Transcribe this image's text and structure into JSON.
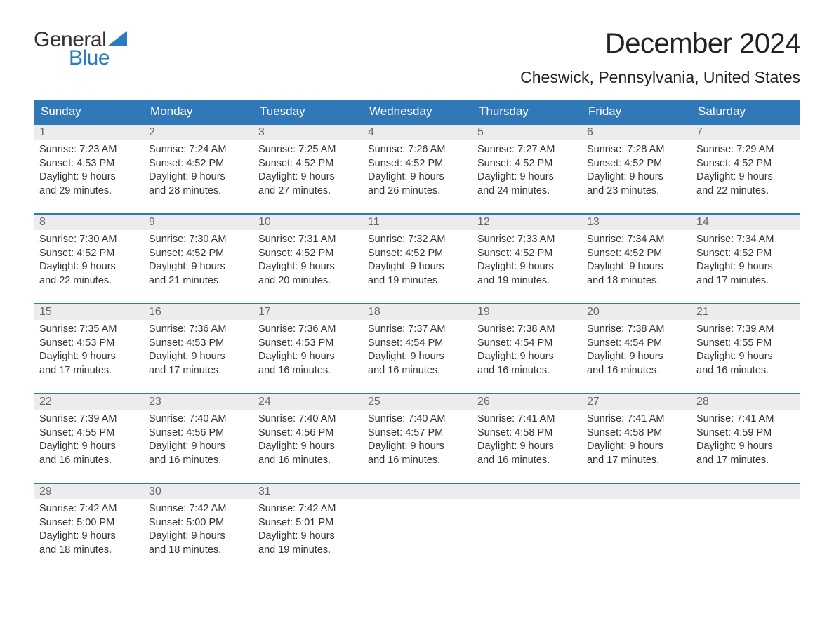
{
  "logo": {
    "line1": "General",
    "line2": "Blue",
    "text_color": "#333333",
    "blue_color": "#2b7cbf",
    "sail_color": "#2b7cbf"
  },
  "title": "December 2024",
  "location": "Cheswick, Pennsylvania, United States",
  "colors": {
    "header_bg": "#3178b8",
    "header_text": "#ffffff",
    "day_number_bg": "#ececec",
    "day_number_text": "#666666",
    "week_border": "#3178b8",
    "body_text": "#333333",
    "background": "#ffffff"
  },
  "weekdays": [
    "Sunday",
    "Monday",
    "Tuesday",
    "Wednesday",
    "Thursday",
    "Friday",
    "Saturday"
  ],
  "weeks": [
    [
      {
        "day": "1",
        "sunrise": "Sunrise: 7:23 AM",
        "sunset": "Sunset: 4:53 PM",
        "daylight1": "Daylight: 9 hours",
        "daylight2": "and 29 minutes."
      },
      {
        "day": "2",
        "sunrise": "Sunrise: 7:24 AM",
        "sunset": "Sunset: 4:52 PM",
        "daylight1": "Daylight: 9 hours",
        "daylight2": "and 28 minutes."
      },
      {
        "day": "3",
        "sunrise": "Sunrise: 7:25 AM",
        "sunset": "Sunset: 4:52 PM",
        "daylight1": "Daylight: 9 hours",
        "daylight2": "and 27 minutes."
      },
      {
        "day": "4",
        "sunrise": "Sunrise: 7:26 AM",
        "sunset": "Sunset: 4:52 PM",
        "daylight1": "Daylight: 9 hours",
        "daylight2": "and 26 minutes."
      },
      {
        "day": "5",
        "sunrise": "Sunrise: 7:27 AM",
        "sunset": "Sunset: 4:52 PM",
        "daylight1": "Daylight: 9 hours",
        "daylight2": "and 24 minutes."
      },
      {
        "day": "6",
        "sunrise": "Sunrise: 7:28 AM",
        "sunset": "Sunset: 4:52 PM",
        "daylight1": "Daylight: 9 hours",
        "daylight2": "and 23 minutes."
      },
      {
        "day": "7",
        "sunrise": "Sunrise: 7:29 AM",
        "sunset": "Sunset: 4:52 PM",
        "daylight1": "Daylight: 9 hours",
        "daylight2": "and 22 minutes."
      }
    ],
    [
      {
        "day": "8",
        "sunrise": "Sunrise: 7:30 AM",
        "sunset": "Sunset: 4:52 PM",
        "daylight1": "Daylight: 9 hours",
        "daylight2": "and 22 minutes."
      },
      {
        "day": "9",
        "sunrise": "Sunrise: 7:30 AM",
        "sunset": "Sunset: 4:52 PM",
        "daylight1": "Daylight: 9 hours",
        "daylight2": "and 21 minutes."
      },
      {
        "day": "10",
        "sunrise": "Sunrise: 7:31 AM",
        "sunset": "Sunset: 4:52 PM",
        "daylight1": "Daylight: 9 hours",
        "daylight2": "and 20 minutes."
      },
      {
        "day": "11",
        "sunrise": "Sunrise: 7:32 AM",
        "sunset": "Sunset: 4:52 PM",
        "daylight1": "Daylight: 9 hours",
        "daylight2": "and 19 minutes."
      },
      {
        "day": "12",
        "sunrise": "Sunrise: 7:33 AM",
        "sunset": "Sunset: 4:52 PM",
        "daylight1": "Daylight: 9 hours",
        "daylight2": "and 19 minutes."
      },
      {
        "day": "13",
        "sunrise": "Sunrise: 7:34 AM",
        "sunset": "Sunset: 4:52 PM",
        "daylight1": "Daylight: 9 hours",
        "daylight2": "and 18 minutes."
      },
      {
        "day": "14",
        "sunrise": "Sunrise: 7:34 AM",
        "sunset": "Sunset: 4:52 PM",
        "daylight1": "Daylight: 9 hours",
        "daylight2": "and 17 minutes."
      }
    ],
    [
      {
        "day": "15",
        "sunrise": "Sunrise: 7:35 AM",
        "sunset": "Sunset: 4:53 PM",
        "daylight1": "Daylight: 9 hours",
        "daylight2": "and 17 minutes."
      },
      {
        "day": "16",
        "sunrise": "Sunrise: 7:36 AM",
        "sunset": "Sunset: 4:53 PM",
        "daylight1": "Daylight: 9 hours",
        "daylight2": "and 17 minutes."
      },
      {
        "day": "17",
        "sunrise": "Sunrise: 7:36 AM",
        "sunset": "Sunset: 4:53 PM",
        "daylight1": "Daylight: 9 hours",
        "daylight2": "and 16 minutes."
      },
      {
        "day": "18",
        "sunrise": "Sunrise: 7:37 AM",
        "sunset": "Sunset: 4:54 PM",
        "daylight1": "Daylight: 9 hours",
        "daylight2": "and 16 minutes."
      },
      {
        "day": "19",
        "sunrise": "Sunrise: 7:38 AM",
        "sunset": "Sunset: 4:54 PM",
        "daylight1": "Daylight: 9 hours",
        "daylight2": "and 16 minutes."
      },
      {
        "day": "20",
        "sunrise": "Sunrise: 7:38 AM",
        "sunset": "Sunset: 4:54 PM",
        "daylight1": "Daylight: 9 hours",
        "daylight2": "and 16 minutes."
      },
      {
        "day": "21",
        "sunrise": "Sunrise: 7:39 AM",
        "sunset": "Sunset: 4:55 PM",
        "daylight1": "Daylight: 9 hours",
        "daylight2": "and 16 minutes."
      }
    ],
    [
      {
        "day": "22",
        "sunrise": "Sunrise: 7:39 AM",
        "sunset": "Sunset: 4:55 PM",
        "daylight1": "Daylight: 9 hours",
        "daylight2": "and 16 minutes."
      },
      {
        "day": "23",
        "sunrise": "Sunrise: 7:40 AM",
        "sunset": "Sunset: 4:56 PM",
        "daylight1": "Daylight: 9 hours",
        "daylight2": "and 16 minutes."
      },
      {
        "day": "24",
        "sunrise": "Sunrise: 7:40 AM",
        "sunset": "Sunset: 4:56 PM",
        "daylight1": "Daylight: 9 hours",
        "daylight2": "and 16 minutes."
      },
      {
        "day": "25",
        "sunrise": "Sunrise: 7:40 AM",
        "sunset": "Sunset: 4:57 PM",
        "daylight1": "Daylight: 9 hours",
        "daylight2": "and 16 minutes."
      },
      {
        "day": "26",
        "sunrise": "Sunrise: 7:41 AM",
        "sunset": "Sunset: 4:58 PM",
        "daylight1": "Daylight: 9 hours",
        "daylight2": "and 16 minutes."
      },
      {
        "day": "27",
        "sunrise": "Sunrise: 7:41 AM",
        "sunset": "Sunset: 4:58 PM",
        "daylight1": "Daylight: 9 hours",
        "daylight2": "and 17 minutes."
      },
      {
        "day": "28",
        "sunrise": "Sunrise: 7:41 AM",
        "sunset": "Sunset: 4:59 PM",
        "daylight1": "Daylight: 9 hours",
        "daylight2": "and 17 minutes."
      }
    ],
    [
      {
        "day": "29",
        "sunrise": "Sunrise: 7:42 AM",
        "sunset": "Sunset: 5:00 PM",
        "daylight1": "Daylight: 9 hours",
        "daylight2": "and 18 minutes."
      },
      {
        "day": "30",
        "sunrise": "Sunrise: 7:42 AM",
        "sunset": "Sunset: 5:00 PM",
        "daylight1": "Daylight: 9 hours",
        "daylight2": "and 18 minutes."
      },
      {
        "day": "31",
        "sunrise": "Sunrise: 7:42 AM",
        "sunset": "Sunset: 5:01 PM",
        "daylight1": "Daylight: 9 hours",
        "daylight2": "and 19 minutes."
      },
      {
        "empty": true
      },
      {
        "empty": true
      },
      {
        "empty": true
      },
      {
        "empty": true
      }
    ]
  ]
}
